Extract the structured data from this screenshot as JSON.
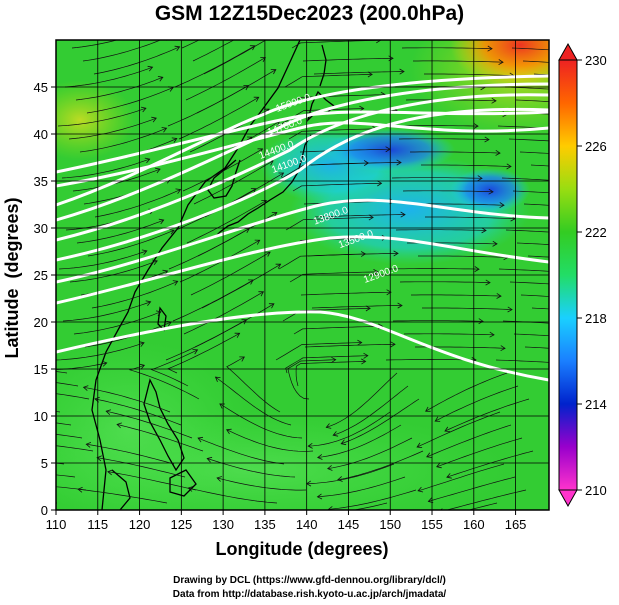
{
  "title": "GSM 12Z15Dec2023 (200.0hPa)",
  "x_axis": {
    "label": "Longitude (degrees)",
    "range": [
      110,
      169
    ],
    "ticks": [
      110,
      115,
      120,
      125,
      130,
      135,
      140,
      145,
      150,
      155,
      160,
      165
    ]
  },
  "y_axis": {
    "label": "Latitude  (degrees)",
    "range": [
      0,
      50
    ],
    "ticks": [
      0,
      5,
      10,
      15,
      20,
      25,
      30,
      35,
      40,
      45
    ]
  },
  "colorbar": {
    "range": [
      210,
      230
    ],
    "tick_labels": [
      "230",
      "226",
      "222",
      "218",
      "214",
      "210"
    ],
    "colors": [
      "#ff33cc",
      "#9900cc",
      "#0022cc",
      "#1a7fff",
      "#1ad0ff",
      "#22dd66",
      "#33cc22",
      "#99dd11",
      "#ffcc00",
      "#ff6600",
      "#ee2222"
    ]
  },
  "contour_labels": [
    {
      "text": "15000.0",
      "lon": 138.5,
      "lat": 43.0
    },
    {
      "text": "14700.0",
      "lon": 137.5,
      "lat": 40.5
    },
    {
      "text": "14400.0",
      "lon": 136.5,
      "lat": 38.0
    },
    {
      "text": "14100.0",
      "lon": 138.0,
      "lat": 36.5
    },
    {
      "text": "13800.0",
      "lon": 143.0,
      "lat": 31.0
    },
    {
      "text": "13500.0",
      "lon": 146.0,
      "lat": 28.5
    },
    {
      "text": "12900.0",
      "lon": 149.0,
      "lat": 24.8
    }
  ],
  "credits": {
    "line1": "Drawing by DCL (https://www.gfd-dennou.org/library/dcl/)",
    "line2": "Data from http://database.rish.kyoto-u.ac.jp/arch/jmadata/"
  },
  "colors": {
    "background": "#33cc33",
    "contour": "#ffffff",
    "streamline": "#111111",
    "coastline": "#000000"
  }
}
